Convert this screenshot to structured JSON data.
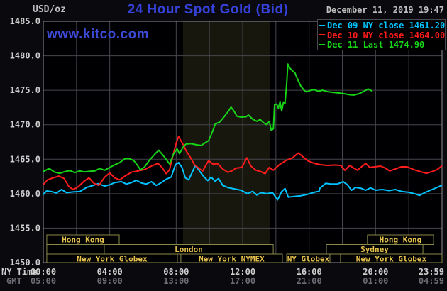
{
  "chart_data": {
    "type": "line",
    "title": "24 Hour Spot Gold (Bid)",
    "unit_label": "USD/oz",
    "timestamp": "December 11, 2019 19:47",
    "watermark": "www.kitco.com",
    "colors": {
      "page_bg": "#0a0a0e",
      "plot_bg": "#000003",
      "band": "#17170d",
      "grid": "#46464e",
      "border": "#8e8e96",
      "axis_text": "#cfcfcf",
      "gmt_text": "#6c6c74",
      "unit_text": "#c0c0c0",
      "title_text": "#3742dd",
      "watermark_text": "#3c4ad8",
      "timestamp_text": "#c0c0c0",
      "session_fill": "#000000",
      "session_border": "#8a8a4a",
      "session_text": "#e8c44e",
      "dec09": "#00c3ff",
      "dec10": "#ff1c1c",
      "dec11": "#17d417"
    },
    "legend": [
      {
        "id": "dec09",
        "color": "#00c3ff",
        "label": "Dec 09 NY close 1461.20"
      },
      {
        "id": "dec10",
        "color": "#ff1c1c",
        "label": "Dec 10 NY close 1464.00"
      },
      {
        "id": "dec11",
        "color": "#17d417",
        "label": "Dec 11 Last 1474.90"
      }
    ],
    "x_axis": {
      "label_ny": "NY Time",
      "label_gmt": "GMT",
      "range": [
        0,
        24
      ],
      "grid_step": 2,
      "ny_ticks": [
        {
          "t": 0,
          "label": "00:00"
        },
        {
          "t": 4,
          "label": "04:00"
        },
        {
          "t": 8,
          "label": "08:00"
        },
        {
          "t": 12,
          "label": "12:00"
        },
        {
          "t": 16,
          "label": "16:00"
        },
        {
          "t": 20,
          "label": "20:00"
        },
        {
          "t": 23.98,
          "label": "23:59"
        }
      ],
      "gmt_ticks": [
        {
          "t": 0,
          "label": "05:00"
        },
        {
          "t": 4,
          "label": "09:00"
        },
        {
          "t": 8,
          "label": "13:00"
        },
        {
          "t": 12,
          "label": "17:00"
        },
        {
          "t": 16,
          "label": "21:00"
        },
        {
          "t": 20,
          "label": "01:00"
        },
        {
          "t": 23.98,
          "label": "04:59"
        }
      ]
    },
    "y_axis": {
      "range": [
        1450,
        1485
      ],
      "tick_step": 5,
      "ticks": [
        {
          "v": 1485,
          "label": "1485.0"
        },
        {
          "v": 1480,
          "label": "1480.0"
        },
        {
          "v": 1475,
          "label": "1475.0"
        },
        {
          "v": 1470,
          "label": "1470.0"
        },
        {
          "v": 1465,
          "label": "1465.0"
        },
        {
          "v": 1460,
          "label": "1460.0"
        },
        {
          "v": 1455,
          "label": "1455.0"
        },
        {
          "v": 1450,
          "label": "1450.0"
        }
      ]
    },
    "nymex_band": {
      "t0": 8.41,
      "t1": 13.62
    },
    "sessions": [
      {
        "label": "Hong Kong",
        "row": 0,
        "t0": 0.21,
        "t1": 4.57
      },
      {
        "label": "Hong Kong",
        "row": 0,
        "t0": 19.51,
        "t1": 23.49
      },
      {
        "label": "",
        "row": 1,
        "t0": 0.21,
        "t1": 3.67
      },
      {
        "label": "London",
        "row": 1,
        "t0": 3.67,
        "t1": 13.84
      },
      {
        "label": "Sydney",
        "row": 1,
        "t0": 17.04,
        "t1": 22.85
      },
      {
        "label": "New York Globex",
        "row": 2,
        "t0": 0.21,
        "t1": 8.07
      },
      {
        "label": "New York NYMEX",
        "row": 2,
        "t0": 8.28,
        "t1": 14.39
      },
      {
        "label": "NY Globex",
        "row": 2,
        "t0": 14.65,
        "t1": 17.25
      },
      {
        "label": "New York Globex",
        "row": 2,
        "t0": 17.89,
        "t1": 24.0
      }
    ],
    "series": [
      {
        "id": "dec09",
        "name": "Dec 09",
        "color": "#00c3ff",
        "close": 1461.2,
        "points": [
          [
            0,
            1459.9
          ],
          [
            0.2,
            1460.4
          ],
          [
            0.5,
            1460.3
          ],
          [
            0.8,
            1460.1
          ],
          [
            1.1,
            1460.6
          ],
          [
            1.4,
            1460.15
          ],
          [
            1.8,
            1460.25
          ],
          [
            2.2,
            1460.3
          ],
          [
            2.6,
            1460.9
          ],
          [
            3.0,
            1461.2
          ],
          [
            3.3,
            1461.45
          ],
          [
            3.7,
            1461.1
          ],
          [
            4.0,
            1461.3
          ],
          [
            4.3,
            1461.6
          ],
          [
            4.7,
            1461.75
          ],
          [
            5.0,
            1461.4
          ],
          [
            5.3,
            1461.6
          ],
          [
            5.6,
            1461.95
          ],
          [
            5.9,
            1461.55
          ],
          [
            6.2,
            1461.4
          ],
          [
            6.5,
            1461.75
          ],
          [
            6.8,
            1461.2
          ],
          [
            7.1,
            1461.6
          ],
          [
            7.4,
            1462.1
          ],
          [
            7.7,
            1462.4
          ],
          [
            7.95,
            1464.2
          ],
          [
            8.15,
            1464.5
          ],
          [
            8.35,
            1463.8
          ],
          [
            8.55,
            1462.3
          ],
          [
            8.75,
            1462.0
          ],
          [
            9.0,
            1463.3
          ],
          [
            9.15,
            1464.1
          ],
          [
            9.4,
            1463.3
          ],
          [
            9.65,
            1462.5
          ],
          [
            9.9,
            1461.9
          ],
          [
            10.1,
            1462.4
          ],
          [
            10.35,
            1461.8
          ],
          [
            10.55,
            1462.2
          ],
          [
            10.8,
            1461.2
          ],
          [
            11.1,
            1460.9
          ],
          [
            11.5,
            1460.7
          ],
          [
            11.9,
            1460.5
          ],
          [
            12.3,
            1460.0
          ],
          [
            12.6,
            1460.35
          ],
          [
            12.85,
            1459.8
          ],
          [
            13.1,
            1460.15
          ],
          [
            13.45,
            1460.0
          ],
          [
            13.8,
            1460.15
          ],
          [
            14.1,
            1459.1
          ],
          [
            14.35,
            1460.3
          ],
          [
            14.55,
            1460.75
          ],
          [
            14.75,
            1459.5
          ],
          [
            15.1,
            1459.6
          ],
          [
            15.5,
            1459.7
          ],
          [
            15.9,
            1459.9
          ],
          [
            16.3,
            1460.2
          ],
          [
            16.6,
            1460.35
          ],
          [
            16.65,
            1460.8
          ],
          [
            17.0,
            1461.5
          ],
          [
            17.3,
            1461.4
          ],
          [
            17.7,
            1461.4
          ],
          [
            18.05,
            1461.75
          ],
          [
            18.3,
            1461.3
          ],
          [
            18.55,
            1460.5
          ],
          [
            18.8,
            1460.9
          ],
          [
            19.1,
            1460.8
          ],
          [
            19.4,
            1460.5
          ],
          [
            19.7,
            1460.85
          ],
          [
            20.0,
            1460.5
          ],
          [
            20.4,
            1460.6
          ],
          [
            20.8,
            1460.45
          ],
          [
            21.2,
            1460.6
          ],
          [
            21.6,
            1460.3
          ],
          [
            22.0,
            1460.2
          ],
          [
            22.4,
            1459.95
          ],
          [
            22.65,
            1459.75
          ],
          [
            23.0,
            1460.2
          ],
          [
            23.4,
            1460.6
          ],
          [
            23.7,
            1460.9
          ],
          [
            23.98,
            1461.2
          ]
        ]
      },
      {
        "id": "dec10",
        "name": "Dec 10",
        "color": "#ff1c1c",
        "close": 1464.0,
        "points": [
          [
            0,
            1461.3
          ],
          [
            0.25,
            1462.0
          ],
          [
            0.6,
            1462.3
          ],
          [
            0.95,
            1462.55
          ],
          [
            1.25,
            1462.2
          ],
          [
            1.55,
            1461.0
          ],
          [
            1.8,
            1460.6
          ],
          [
            2.1,
            1461.0
          ],
          [
            2.45,
            1461.8
          ],
          [
            2.75,
            1462.3
          ],
          [
            3.05,
            1461.5
          ],
          [
            3.35,
            1461.2
          ],
          [
            3.7,
            1462.4
          ],
          [
            4.0,
            1463.0
          ],
          [
            4.3,
            1462.3
          ],
          [
            4.6,
            1462.0
          ],
          [
            4.95,
            1462.6
          ],
          [
            5.3,
            1463.1
          ],
          [
            5.7,
            1463.3
          ],
          [
            6.1,
            1463.5
          ],
          [
            6.5,
            1464.0
          ],
          [
            6.9,
            1464.4
          ],
          [
            7.15,
            1463.8
          ],
          [
            7.4,
            1462.9
          ],
          [
            7.6,
            1463.5
          ],
          [
            7.8,
            1465.5
          ],
          [
            8.0,
            1467.3
          ],
          [
            8.15,
            1468.3
          ],
          [
            8.3,
            1467.6
          ],
          [
            8.45,
            1467.0
          ],
          [
            8.6,
            1466.2
          ],
          [
            8.85,
            1465.3
          ],
          [
            9.1,
            1464.2
          ],
          [
            9.35,
            1463.7
          ],
          [
            9.6,
            1463.3
          ],
          [
            9.8,
            1464.2
          ],
          [
            9.95,
            1464.8
          ],
          [
            10.2,
            1464.3
          ],
          [
            10.5,
            1464.35
          ],
          [
            10.8,
            1463.6
          ],
          [
            11.1,
            1463.1
          ],
          [
            11.35,
            1463.3
          ],
          [
            11.6,
            1463.7
          ],
          [
            11.95,
            1463.8
          ],
          [
            12.25,
            1465.2
          ],
          [
            12.5,
            1464.0
          ],
          [
            12.8,
            1463.4
          ],
          [
            13.1,
            1463.2
          ],
          [
            13.35,
            1462.9
          ],
          [
            13.6,
            1463.8
          ],
          [
            13.85,
            1463.4
          ],
          [
            14.2,
            1464.2
          ],
          [
            14.6,
            1464.8
          ],
          [
            15.0,
            1465.2
          ],
          [
            15.35,
            1465.9
          ],
          [
            15.6,
            1465.4
          ],
          [
            15.9,
            1464.8
          ],
          [
            16.3,
            1464.4
          ],
          [
            16.7,
            1464.2
          ],
          [
            17.1,
            1464.1
          ],
          [
            17.5,
            1464.15
          ],
          [
            17.9,
            1464.1
          ],
          [
            18.15,
            1463.4
          ],
          [
            18.45,
            1464.1
          ],
          [
            18.7,
            1463.7
          ],
          [
            18.9,
            1463.4
          ],
          [
            19.15,
            1463.9
          ],
          [
            19.4,
            1464.4
          ],
          [
            19.65,
            1463.8
          ],
          [
            19.95,
            1463.9
          ],
          [
            20.3,
            1464.0
          ],
          [
            20.6,
            1463.7
          ],
          [
            20.85,
            1463.3
          ],
          [
            21.2,
            1463.6
          ],
          [
            21.55,
            1463.9
          ],
          [
            21.9,
            1463.9
          ],
          [
            22.3,
            1463.5
          ],
          [
            22.7,
            1463.2
          ],
          [
            23.05,
            1462.95
          ],
          [
            23.4,
            1463.2
          ],
          [
            23.7,
            1463.5
          ],
          [
            23.98,
            1464.0
          ]
        ]
      },
      {
        "id": "dec11",
        "name": "Dec 11",
        "color": "#17d417",
        "last": 1474.9,
        "points": [
          [
            0,
            1463.2
          ],
          [
            0.35,
            1463.65
          ],
          [
            0.7,
            1463.1
          ],
          [
            1.0,
            1462.95
          ],
          [
            1.3,
            1463.2
          ],
          [
            1.6,
            1463.35
          ],
          [
            1.9,
            1463.05
          ],
          [
            2.2,
            1463.3
          ],
          [
            2.5,
            1463.15
          ],
          [
            2.8,
            1463.25
          ],
          [
            3.1,
            1463.3
          ],
          [
            3.4,
            1463.65
          ],
          [
            3.7,
            1463.4
          ],
          [
            4.0,
            1463.8
          ],
          [
            4.3,
            1464.2
          ],
          [
            4.6,
            1464.5
          ],
          [
            4.9,
            1465.05
          ],
          [
            5.15,
            1465.1
          ],
          [
            5.45,
            1464.8
          ],
          [
            5.7,
            1464.0
          ],
          [
            5.85,
            1463.45
          ],
          [
            6.1,
            1463.9
          ],
          [
            6.4,
            1464.9
          ],
          [
            6.7,
            1465.7
          ],
          [
            6.95,
            1466.3
          ],
          [
            7.2,
            1465.6
          ],
          [
            7.45,
            1464.8
          ],
          [
            7.6,
            1464.3
          ],
          [
            7.85,
            1465.8
          ],
          [
            8.05,
            1466.5
          ],
          [
            8.2,
            1465.8
          ],
          [
            8.45,
            1466.9
          ],
          [
            8.6,
            1467.2
          ],
          [
            8.9,
            1467.25
          ],
          [
            9.2,
            1467.1
          ],
          [
            9.5,
            1467.0
          ],
          [
            9.75,
            1467.4
          ],
          [
            9.95,
            1467.7
          ],
          [
            10.15,
            1468.8
          ],
          [
            10.35,
            1470.1
          ],
          [
            10.6,
            1470.35
          ],
          [
            10.9,
            1471.2
          ],
          [
            11.15,
            1472.0
          ],
          [
            11.3,
            1472.55
          ],
          [
            11.5,
            1471.9
          ],
          [
            11.65,
            1471.25
          ],
          [
            11.9,
            1471.1
          ],
          [
            12.2,
            1471.15
          ],
          [
            12.35,
            1471.4
          ],
          [
            12.6,
            1470.8
          ],
          [
            12.85,
            1470.5
          ],
          [
            13.05,
            1470.75
          ],
          [
            13.25,
            1470.3
          ],
          [
            13.45,
            1470.0
          ],
          [
            13.6,
            1470.5
          ],
          [
            13.72,
            1469.2
          ],
          [
            13.85,
            1469.4
          ],
          [
            13.92,
            1472.9
          ],
          [
            14.05,
            1473.0
          ],
          [
            14.15,
            1472.4
          ],
          [
            14.25,
            1473.3
          ],
          [
            14.35,
            1472.0
          ],
          [
            14.45,
            1473.2
          ],
          [
            14.55,
            1473.1
          ],
          [
            14.65,
            1476.0
          ],
          [
            14.72,
            1478.8
          ],
          [
            14.85,
            1478.2
          ],
          [
            15.0,
            1477.8
          ],
          [
            15.15,
            1477.5
          ],
          [
            15.3,
            1476.6
          ],
          [
            15.5,
            1475.6
          ],
          [
            15.7,
            1475.0
          ],
          [
            15.85,
            1474.75
          ],
          [
            16.05,
            1474.95
          ],
          [
            16.3,
            1475.1
          ],
          [
            16.55,
            1474.85
          ],
          [
            16.8,
            1475.0
          ],
          [
            17.1,
            1474.8
          ],
          [
            17.45,
            1474.7
          ],
          [
            17.8,
            1474.6
          ],
          [
            18.1,
            1474.5
          ],
          [
            18.45,
            1474.35
          ],
          [
            18.7,
            1474.3
          ],
          [
            19.0,
            1474.5
          ],
          [
            19.3,
            1474.85
          ],
          [
            19.55,
            1475.2
          ],
          [
            19.78,
            1474.9
          ]
        ]
      }
    ]
  }
}
